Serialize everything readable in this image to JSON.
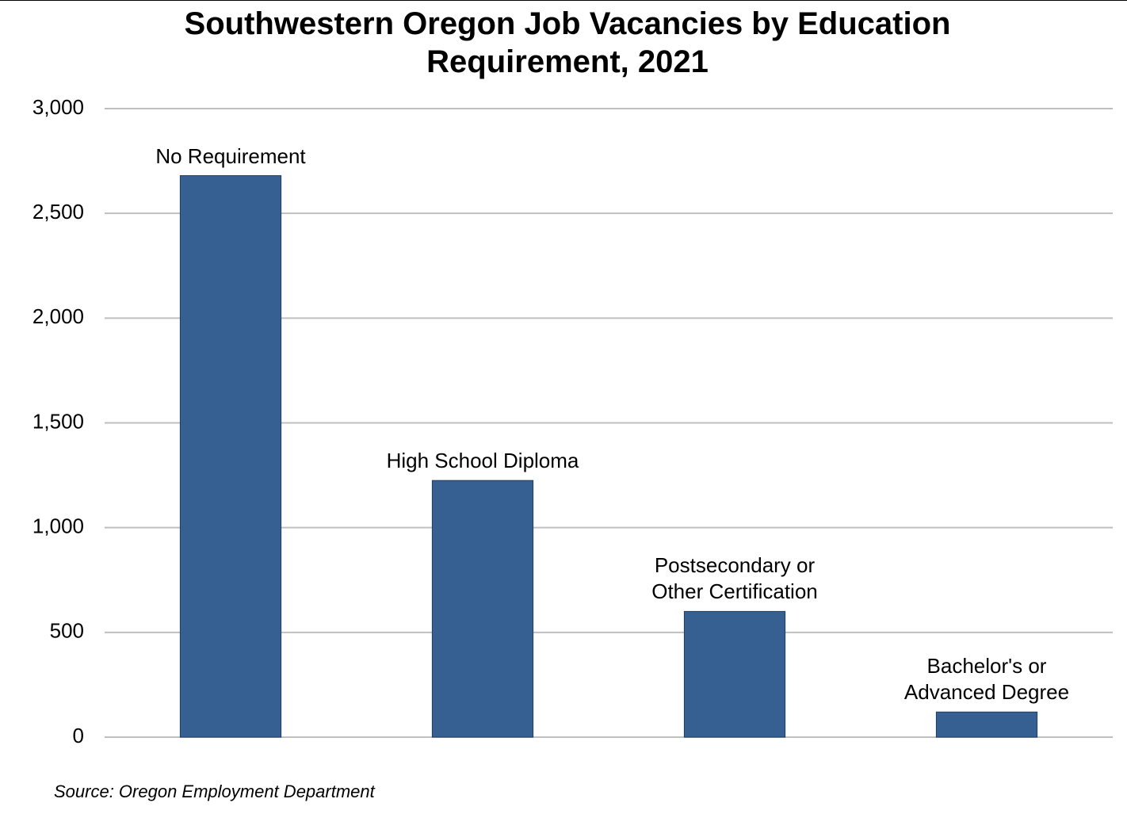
{
  "chart_data": {
    "type": "bar",
    "title": "Southwestern Oregon Job Vacancies by Education Requirement, 2021",
    "source": "Source: Oregon Employment Department",
    "categories": [
      "No Requirement",
      "High School Diploma",
      "Postsecondary or Other Certification",
      "Bachelor's or Advanced Degree"
    ],
    "values": [
      2680,
      1225,
      600,
      120
    ],
    "color": "#376092",
    "ylim": [
      0,
      3000
    ],
    "yticks": [
      0,
      500,
      {
        "value": 1000,
        "label": "1,000"
      },
      {
        "value": 1500,
        "label": "1,500"
      },
      {
        "value": 2000,
        "label": "2,000"
      },
      {
        "value": 2500,
        "label": "2,500"
      },
      {
        "value": 3000,
        "label": "3,000"
      }
    ],
    "grid": true
  }
}
